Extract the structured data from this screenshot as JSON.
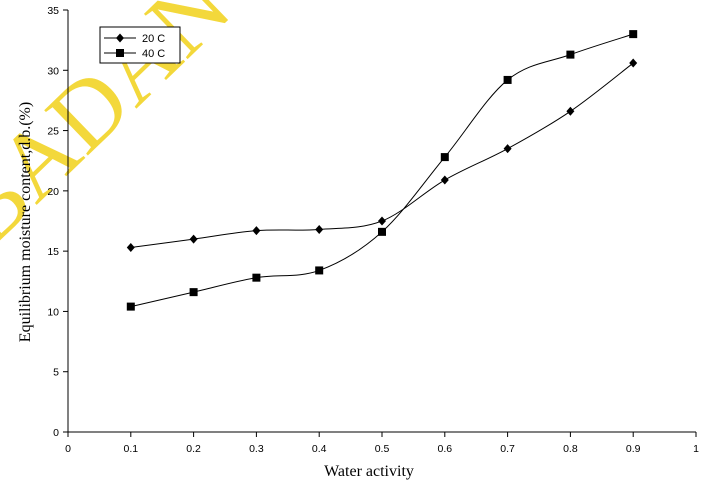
{
  "chart_data": {
    "type": "line",
    "title": "",
    "xlabel": "Water activity",
    "ylabel": "Equilibrium moisture content,d.b.(%)",
    "xlim": [
      0,
      1
    ],
    "ylim": [
      0,
      35
    ],
    "xticks": [
      "0",
      "0.1",
      "0.2",
      "0.3",
      "0.4",
      "0.5",
      "0.6",
      "0.7",
      "0.8",
      "0.9",
      "1"
    ],
    "yticks": [
      "0",
      "5",
      "10",
      "15",
      "20",
      "25",
      "30",
      "35"
    ],
    "grid": false,
    "legend_position": "top-left",
    "series": [
      {
        "name": "20 C",
        "marker": "diamond",
        "color": "#000000",
        "x": [
          0.1,
          0.2,
          0.3,
          0.4,
          0.5,
          0.6,
          0.7,
          0.8,
          0.9
        ],
        "y": [
          15.3,
          16.0,
          16.7,
          16.8,
          17.5,
          20.9,
          23.5,
          26.6,
          30.6
        ]
      },
      {
        "name": "40 C",
        "marker": "square",
        "color": "#000000",
        "x": [
          0.1,
          0.2,
          0.3,
          0.4,
          0.5,
          0.6,
          0.7,
          0.8,
          0.9
        ],
        "y": [
          10.4,
          11.6,
          12.8,
          13.4,
          16.6,
          22.8,
          29.2,
          31.3,
          33.0
        ]
      }
    ]
  },
  "watermark": {
    "text": "BADAN",
    "color": "#f2d21a"
  }
}
